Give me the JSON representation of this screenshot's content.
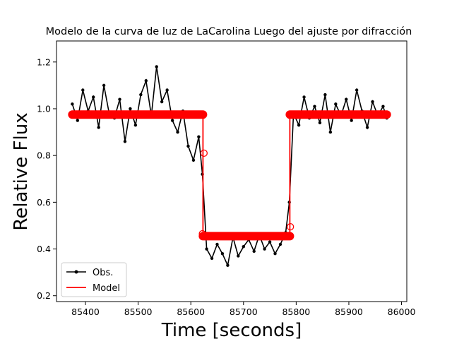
{
  "chart_data": {
    "type": "line",
    "title": "Modelo de la curva de luz de LaCarolina Luego del ajuste por difracción",
    "xlabel": "Time [seconds]",
    "ylabel": "Relative Flux",
    "xlim": [
      85345,
      86010
    ],
    "ylim": [
      0.175,
      1.29
    ],
    "x_ticks": [
      85400,
      85500,
      85600,
      85700,
      85800,
      85900,
      86000
    ],
    "x_tick_labels": [
      "85400",
      "85500",
      "85600",
      "85700",
      "85800",
      "85900",
      "86000"
    ],
    "y_ticks": [
      0.2,
      0.4,
      0.6,
      0.8,
      1.0,
      1.2
    ],
    "y_tick_labels": [
      "0.2",
      "0.4",
      "0.6",
      "0.8",
      "1.0",
      "1.2"
    ],
    "grid": false,
    "legend": {
      "position": "lower-left",
      "entries": [
        {
          "label": "Obs.",
          "color": "#000000",
          "marker": "point"
        },
        {
          "label": "Model",
          "color": "#ff0000",
          "marker": "none"
        }
      ]
    },
    "series": [
      {
        "name": "Obs.",
        "style": "line-with-points",
        "color": "#000000",
        "x": [
          85375,
          85385,
          85395,
          85405,
          85415,
          85425,
          85435,
          85445,
          85455,
          85465,
          85475,
          85485,
          85495,
          85505,
          85515,
          85525,
          85535,
          85545,
          85555,
          85565,
          85575,
          85585,
          85595,
          85605,
          85615,
          85622,
          85630,
          85640,
          85650,
          85660,
          85670,
          85680,
          85690,
          85700,
          85710,
          85720,
          85730,
          85740,
          85750,
          85760,
          85770,
          85780,
          85787,
          85795,
          85805,
          85815,
          85825,
          85835,
          85845,
          85855,
          85865,
          85875,
          85885,
          85895,
          85905,
          85915,
          85925,
          85935,
          85945,
          85955,
          85965,
          85972
        ],
        "y": [
          1.02,
          0.95,
          1.08,
          0.99,
          1.05,
          0.92,
          1.1,
          0.98,
          0.96,
          1.04,
          0.86,
          1.0,
          0.93,
          1.06,
          1.12,
          0.97,
          1.18,
          1.03,
          1.08,
          0.95,
          0.9,
          0.99,
          0.84,
          0.78,
          0.88,
          0.72,
          0.4,
          0.36,
          0.42,
          0.38,
          0.33,
          0.45,
          0.37,
          0.41,
          0.44,
          0.39,
          0.46,
          0.4,
          0.43,
          0.38,
          0.42,
          0.47,
          0.6,
          0.98,
          0.93,
          1.05,
          0.96,
          1.01,
          0.94,
          1.06,
          0.9,
          1.02,
          0.97,
          1.04,
          0.95,
          1.08,
          0.99,
          0.92,
          1.03,
          0.97,
          1.01,
          0.96
        ]
      },
      {
        "name": "Model",
        "style": "step-with-open-circles",
        "color": "#ff0000",
        "x": [
          85375,
          85623,
          85623,
          85788,
          85788,
          85972
        ],
        "y": [
          0.975,
          0.975,
          0.455,
          0.455,
          0.975,
          0.975
        ],
        "transition_points": [
          {
            "x": 85625,
            "y": 0.81
          },
          {
            "x": 85622,
            "y": 0.465
          },
          {
            "x": 85789,
            "y": 0.495
          }
        ]
      }
    ]
  }
}
